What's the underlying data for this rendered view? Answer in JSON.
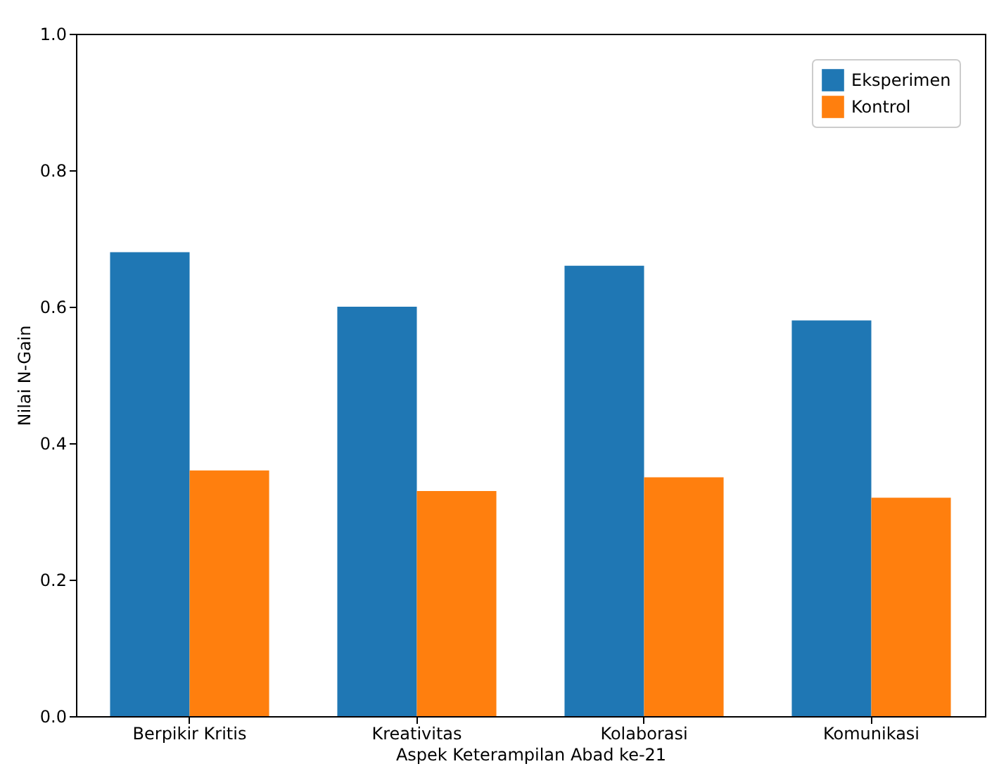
{
  "chart_data": {
    "type": "bar",
    "xlabel": "Aspek Keterampilan Abad ke-21",
    "ylabel": "Nilai N-Gain",
    "categories": [
      "Berpikir Kritis",
      "Kreativitas",
      "Kolaborasi",
      "Komunikasi"
    ],
    "series": [
      {
        "name": "Eksperimen",
        "color": "#1f77b4",
        "values": [
          0.68,
          0.6,
          0.66,
          0.58
        ]
      },
      {
        "name": "Kontrol",
        "color": "#ff7f0e",
        "values": [
          0.36,
          0.33,
          0.35,
          0.32
        ]
      }
    ],
    "ylim": [
      0,
      1
    ],
    "yticks": [
      {
        "value": 0,
        "label": "0.0"
      },
      {
        "value": 0.2,
        "label": "0.2"
      },
      {
        "value": 0.4,
        "label": "0.4"
      },
      {
        "value": 0.6,
        "label": "0.6"
      },
      {
        "value": 0.8,
        "label": "0.8"
      },
      {
        "value": 1,
        "label": "1.0"
      }
    ],
    "legend": "top right",
    "grid": false
  }
}
